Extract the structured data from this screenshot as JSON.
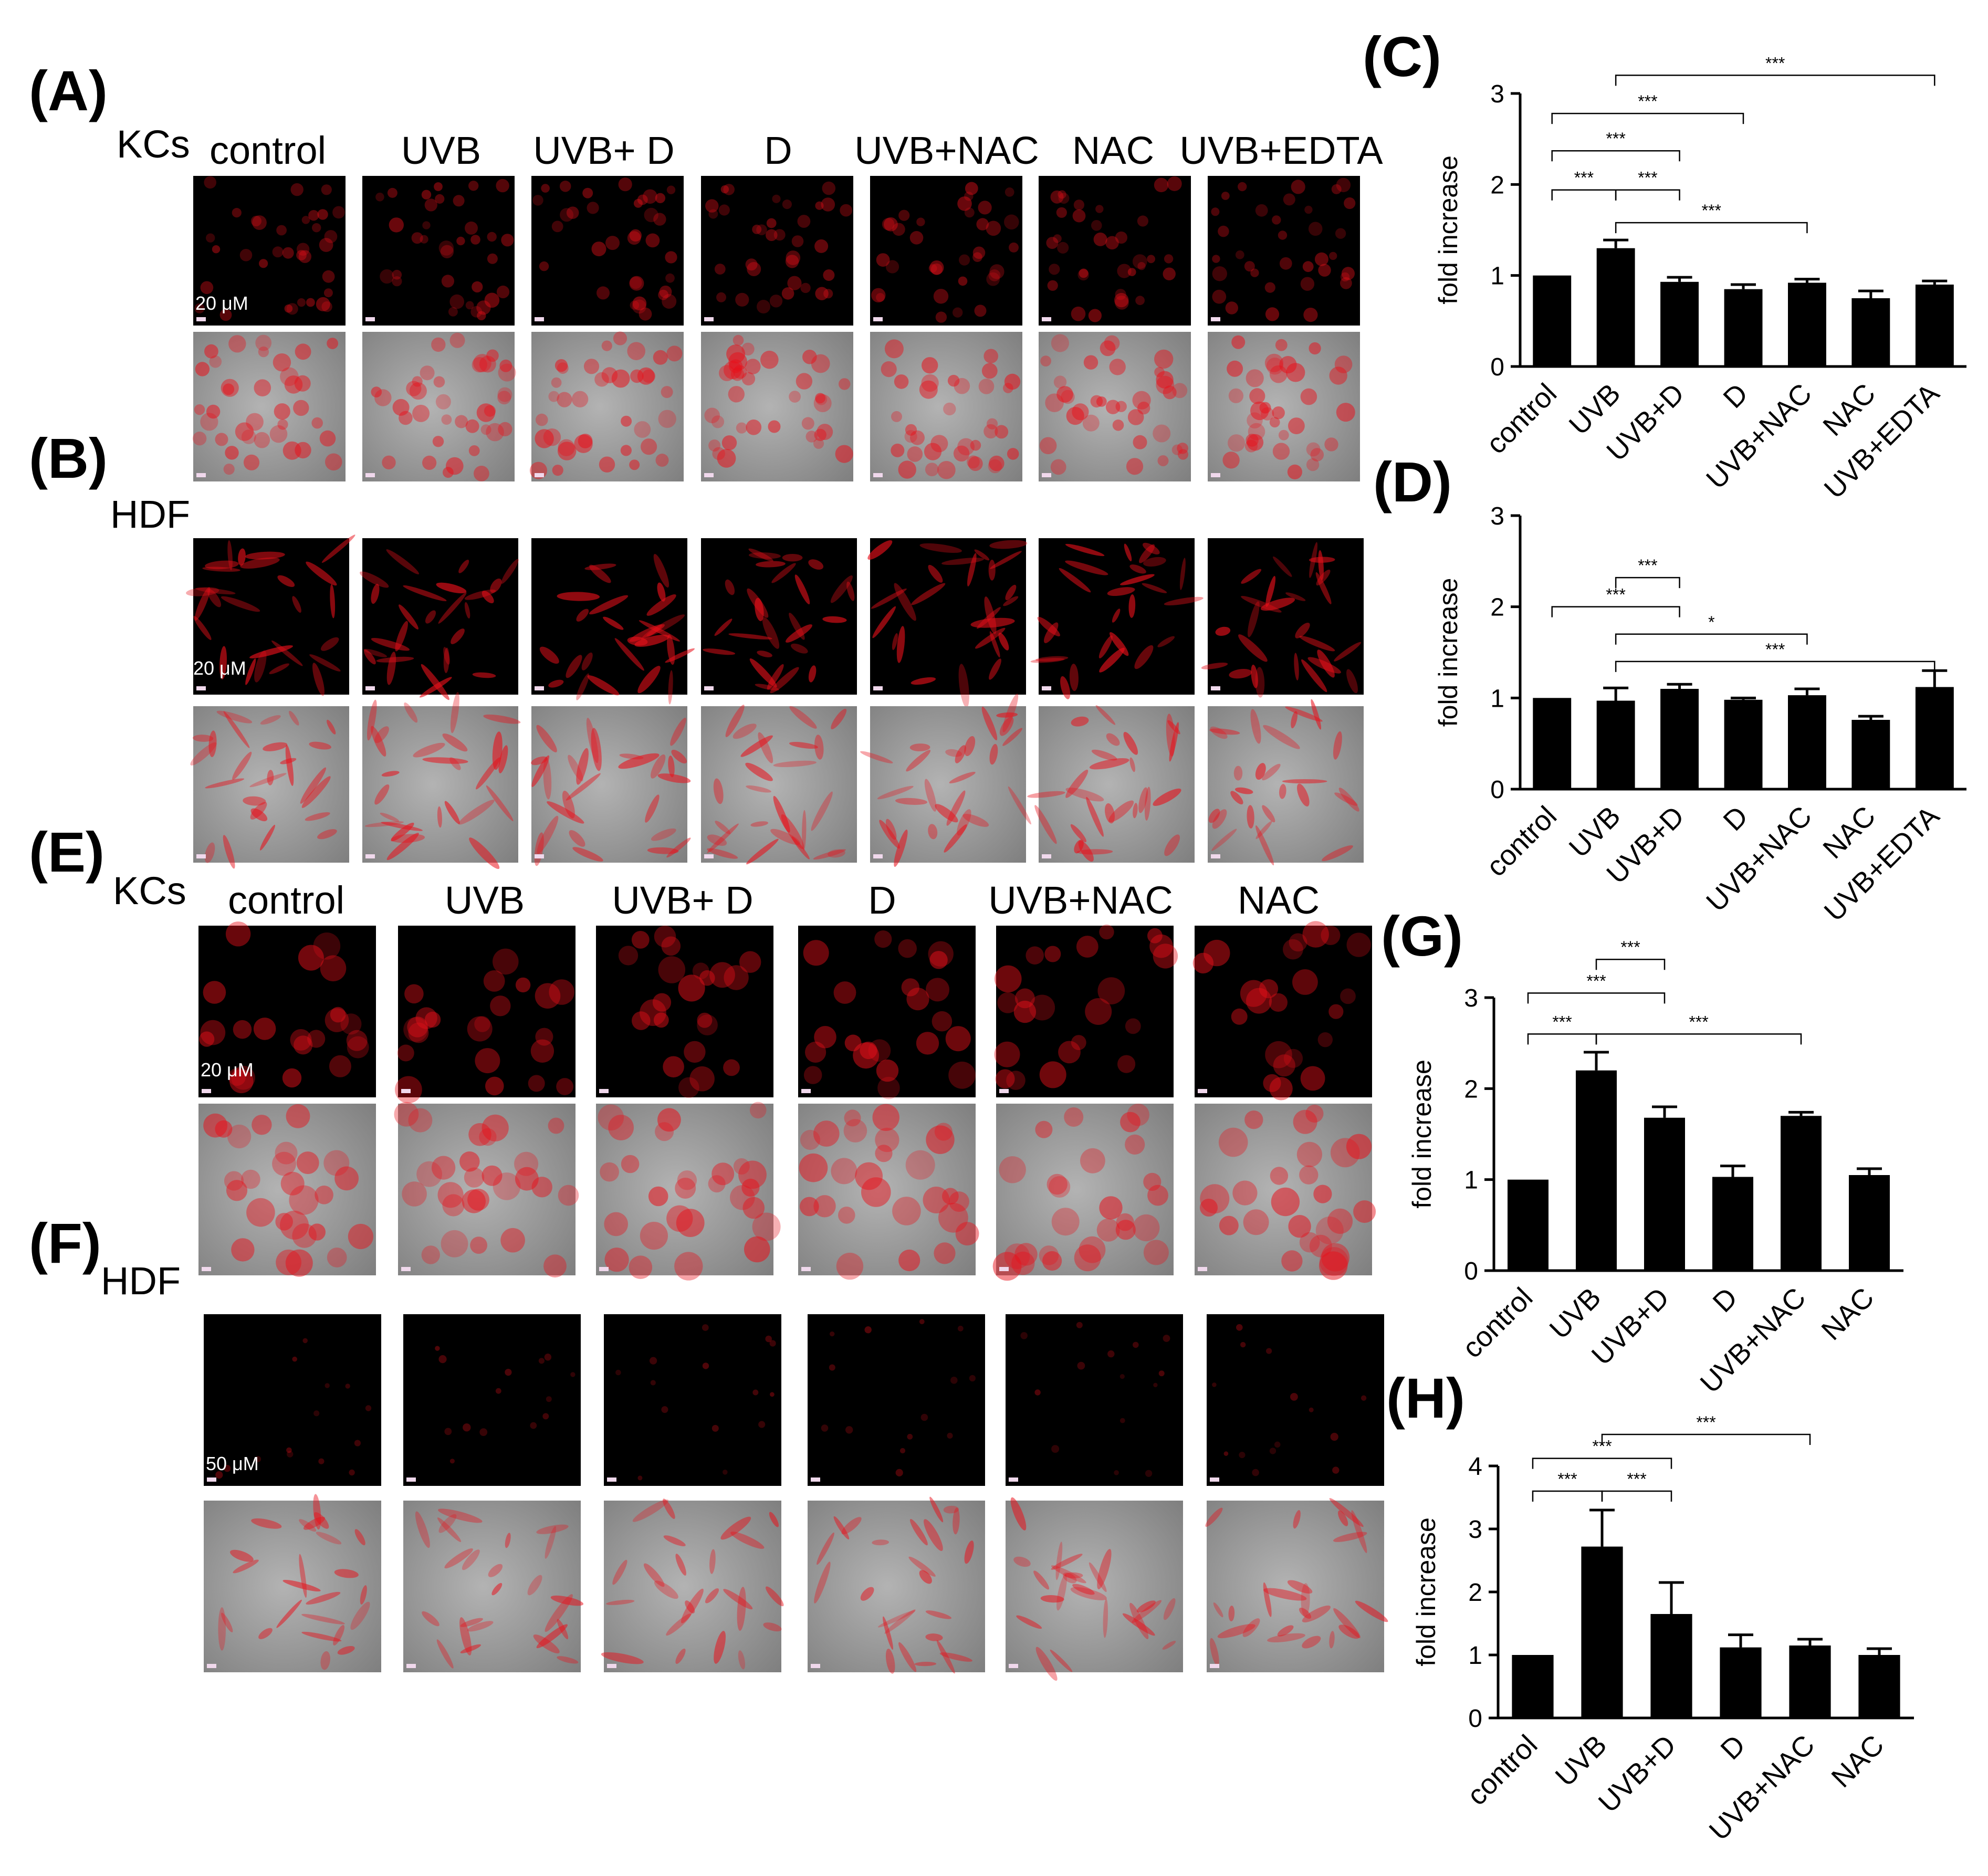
{
  "figure": {
    "panel_letters": {
      "A": "(A)",
      "B": "(B)",
      "C": "(C)",
      "D": "(D)",
      "E": "(E)",
      "F": "(F)",
      "G": "(G)",
      "H": "(H)"
    },
    "cell_types": {
      "A": "KCs",
      "B": "HDF",
      "E": "KCs",
      "F": "HDF"
    },
    "headers_A": [
      "control",
      "UVB",
      "UVB+ D",
      "D",
      "UVB+NAC",
      "NAC",
      "UVB+EDTA"
    ],
    "headers_E": [
      "control",
      "UVB",
      "UVB+ D",
      "D",
      "UVB+NAC",
      "NAC"
    ],
    "scale_labels": {
      "A": "20 μM",
      "B": "20 μM",
      "E": "20 μM",
      "F": "50 μM"
    },
    "colors": {
      "fluorescence": "#e8101a",
      "background": "#000000",
      "dic": "#9a9a9a",
      "bar": "#000000"
    }
  },
  "chart_data": [
    {
      "panel": "C",
      "type": "bar",
      "categories": [
        "control",
        "UVB",
        "UVB+D",
        "D",
        "UVB+NAC",
        "NAC",
        "UVB+EDTA"
      ],
      "values": [
        1.0,
        1.3,
        0.93,
        0.85,
        0.92,
        0.75,
        0.9
      ],
      "errors": [
        0.0,
        0.09,
        0.05,
        0.05,
        0.04,
        0.08,
        0.04
      ],
      "ylabel": "fold increase",
      "ylim": [
        0,
        3
      ],
      "yticks": [
        "0",
        "1",
        "2",
        "3"
      ],
      "significance": [
        {
          "from": 0,
          "to": 1,
          "label": "***",
          "level": 1.94
        },
        {
          "from": 1,
          "to": 2,
          "label": "***",
          "level": 1.94
        },
        {
          "from": 0,
          "to": 2,
          "label": "***",
          "level": 2.37
        },
        {
          "from": 0,
          "to": 3,
          "label": "***",
          "level": 2.78
        },
        {
          "from": 1,
          "to": 6,
          "label": "***",
          "level": 3.2
        },
        {
          "from": 1,
          "to": 4,
          "label": "***",
          "level": 1.58
        }
      ]
    },
    {
      "panel": "D",
      "type": "bar",
      "categories": [
        "control",
        "UVB",
        "UVB+D",
        "D",
        "UVB+NAC",
        "NAC",
        "UVB+EDTA"
      ],
      "values": [
        1.0,
        0.97,
        1.1,
        0.98,
        1.03,
        0.76,
        1.12
      ],
      "errors": [
        0.0,
        0.14,
        0.05,
        0.02,
        0.07,
        0.04,
        0.18
      ],
      "ylabel": "fold increase",
      "ylim": [
        0,
        3
      ],
      "yticks": [
        "0",
        "1",
        "2",
        "3"
      ],
      "significance": [
        {
          "from": 1,
          "to": 2,
          "label": "***",
          "level": 2.32
        },
        {
          "from": 0,
          "to": 2,
          "label": "***",
          "level": 2.0
        },
        {
          "from": 1,
          "to": 4,
          "label": "*",
          "level": 1.7
        },
        {
          "from": 1,
          "to": 6,
          "label": "***",
          "level": 1.4
        }
      ]
    },
    {
      "panel": "G",
      "type": "bar",
      "categories": [
        "control",
        "UVB",
        "UVB+D",
        "D",
        "UVB+NAC",
        "NAC"
      ],
      "values": [
        1.0,
        2.2,
        1.68,
        1.03,
        1.7,
        1.05
      ],
      "errors": [
        0.0,
        0.2,
        0.12,
        0.12,
        0.04,
        0.07
      ],
      "ylabel": "fold increase",
      "ylim": [
        0,
        3
      ],
      "yticks": [
        "0",
        "1",
        "2",
        "3"
      ],
      "significance": [
        {
          "from": 1,
          "to": 2,
          "label": "***",
          "level": 3.42
        },
        {
          "from": 0,
          "to": 2,
          "label": "***",
          "level": 3.05
        },
        {
          "from": 0,
          "to": 1,
          "label": "***",
          "level": 2.6
        },
        {
          "from": 1,
          "to": 4,
          "label": "***",
          "level": 2.6
        }
      ]
    },
    {
      "panel": "H",
      "type": "bar",
      "categories": [
        "control",
        "UVB",
        "UVB+D",
        "D",
        "UVB+NAC",
        "NAC"
      ],
      "values": [
        1.0,
        2.72,
        1.65,
        1.12,
        1.15,
        1.0
      ],
      "errors": [
        0.0,
        0.58,
        0.5,
        0.2,
        0.1,
        0.1
      ],
      "ylabel": "fold increase",
      "ylim": [
        0,
        4
      ],
      "yticks": [
        "0",
        "1",
        "2",
        "3",
        "4"
      ],
      "significance": [
        {
          "from": 1,
          "to": 4,
          "label": "***",
          "level": 4.5
        },
        {
          "from": 0,
          "to": 2,
          "label": "***",
          "level": 4.12
        },
        {
          "from": 0,
          "to": 1,
          "label": "***",
          "level": 3.6
        },
        {
          "from": 1,
          "to": 2,
          "label": "***",
          "level": 3.6
        }
      ]
    }
  ]
}
